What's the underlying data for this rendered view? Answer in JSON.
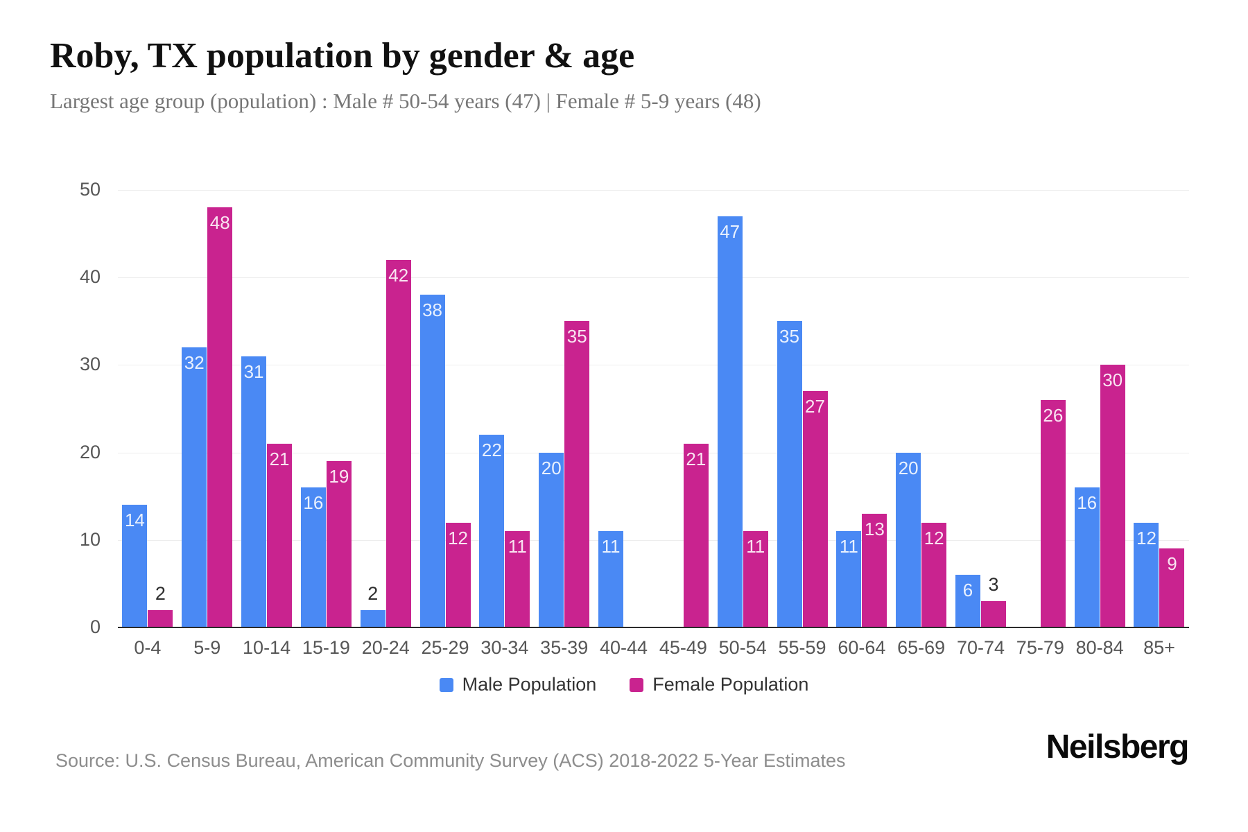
{
  "title": "Roby, TX population by gender & age",
  "subtitle": "Largest age group (population) : Male # 50-54 years (47) | Female # 5-9 years (48)",
  "source_note": "Source: U.S. Census Bureau, American Community Survey (ACS) 2018-2022 5-Year Estimates",
  "brand_logo": "Neilsberg",
  "legend": {
    "male_label": "Male Population",
    "female_label": "Female Population"
  },
  "colors": {
    "male": "#4a89f4",
    "female": "#c9238f",
    "grid": "#ededed",
    "axis": "#2b2b2b",
    "tick_label": "#565656",
    "inside_value_label": "#ffffff",
    "outside_value_label": "#2e2e2e"
  },
  "chart_data": {
    "type": "bar",
    "title": "Roby, TX population by gender & age",
    "subtitle": "Largest age group (population) : Male # 50-54 years (47) | Female # 5-9 years (48)",
    "categories": [
      "0-4",
      "5-9",
      "10-14",
      "15-19",
      "20-24",
      "25-29",
      "30-34",
      "35-39",
      "40-44",
      "45-49",
      "50-54",
      "55-59",
      "60-64",
      "65-69",
      "70-74",
      "75-79",
      "80-84",
      "85+"
    ],
    "series": [
      {
        "name": "Male Population",
        "color": "#4a89f4",
        "values": [
          14,
          32,
          31,
          16,
          2,
          38,
          22,
          20,
          11,
          0,
          47,
          35,
          11,
          20,
          6,
          0,
          16,
          12
        ]
      },
      {
        "name": "Female Population",
        "color": "#c9238f",
        "values": [
          2,
          48,
          21,
          19,
          42,
          12,
          11,
          35,
          0,
          21,
          11,
          27,
          13,
          12,
          3,
          26,
          30,
          9
        ]
      }
    ],
    "xlabel": "",
    "ylabel": "",
    "ylim": [
      0,
      50
    ],
    "yticks": [
      0,
      10,
      20,
      30,
      40,
      50
    ],
    "grid": true,
    "legend_position": "bottom",
    "bar_value_labels": true
  }
}
